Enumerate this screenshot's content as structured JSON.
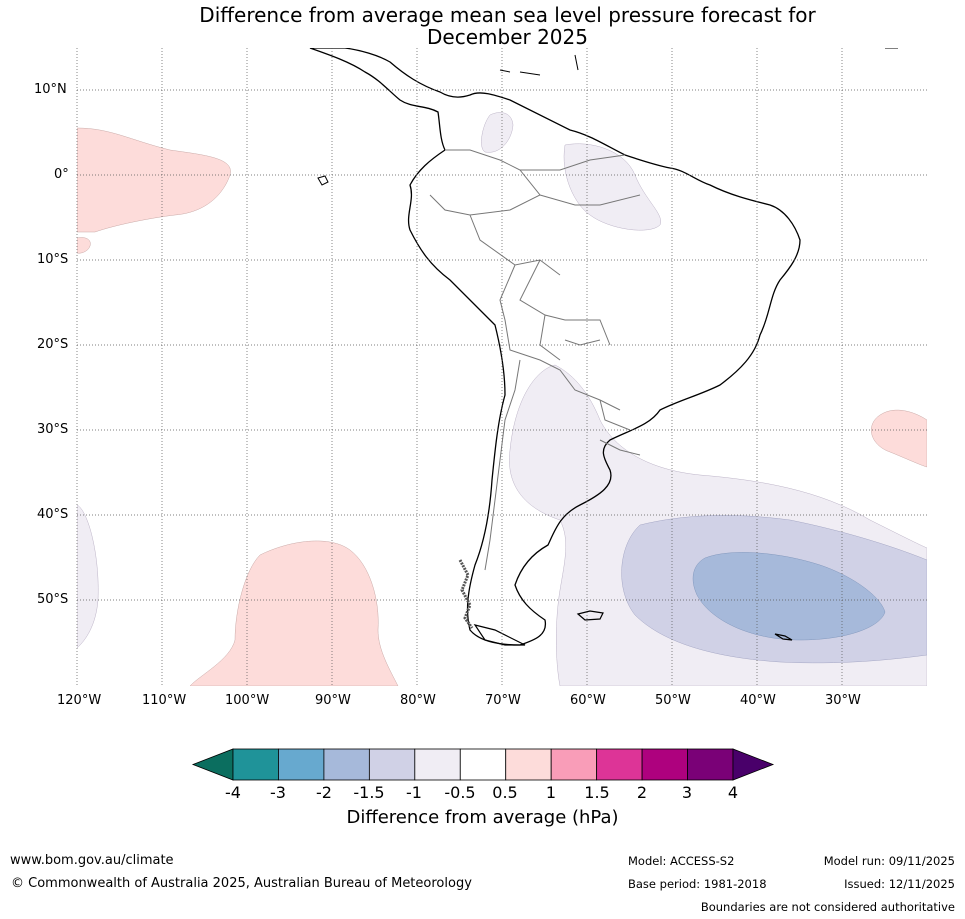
{
  "title_line1": "Difference from average mean sea level pressure forecast for",
  "title_line2": "December 2025",
  "lat_labels": [
    "10°N",
    "0°",
    "10°S",
    "20°S",
    "30°S",
    "40°S",
    "50°S"
  ],
  "lon_labels": [
    "120°W",
    "110°W",
    "100°W",
    "90°W",
    "80°W",
    "70°W",
    "60°W",
    "50°W",
    "40°W",
    "30°W"
  ],
  "colorbar": {
    "ticks": [
      "-4",
      "-3",
      "-2",
      "-1.5",
      "-1",
      "-0.5",
      "0.5",
      "1",
      "1.5",
      "2",
      "3",
      "4"
    ],
    "colors": [
      "#0b6e5f",
      "#1f9399",
      "#67a9cf",
      "#a6b9da",
      "#d0d1e6",
      "#f0edf4",
      "#ffffff",
      "#fddcda",
      "#f99db8",
      "#dd3497",
      "#ae017e",
      "#7a0177",
      "#49006a"
    ],
    "label": "Difference from average (hPa)"
  },
  "footer": {
    "website": "www.bom.gov.au/climate",
    "copyright": "© Commonwealth of Australia 2025, Australian Bureau of Meteorology",
    "model": "Model: ACCESS-S2",
    "base_period": "Base period: 1981-2018",
    "model_run": "Model run: 09/11/2025",
    "issued": "Issued: 12/11/2025",
    "disclaimer": "Boundaries are not considered authoritative"
  }
}
